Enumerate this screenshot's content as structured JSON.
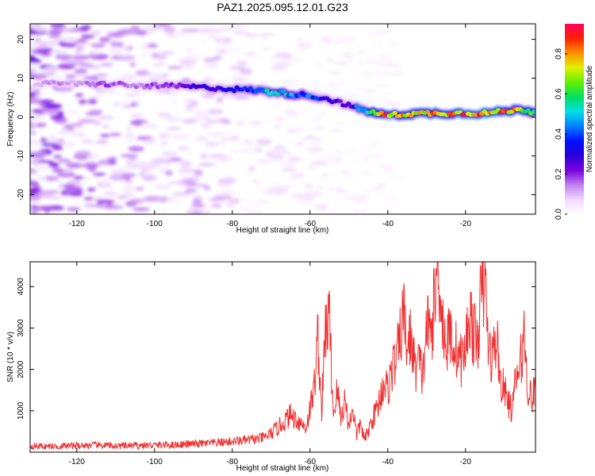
{
  "title": "PAZ1.2025.095.12.01.G23",
  "chart_data": [
    {
      "type": "heatmap",
      "panel": "spectrogram",
      "xlabel": "Height of straight line (km)",
      "ylabel": "Frequency (Hz)",
      "xlim": [
        -132,
        -2
      ],
      "ylim": [
        -25,
        24
      ],
      "x_ticks": [
        "-120",
        "-100",
        "-80",
        "-60",
        "-40",
        "-20"
      ],
      "y_ticks": [
        "20",
        "10",
        "0",
        "-10",
        "-20"
      ],
      "colorbar": {
        "label": "Normalized spectral amplitude",
        "range": [
          0,
          0.95
        ],
        "ticks": [
          "0.0",
          "0.2",
          "0.4",
          "0.6",
          "0.8"
        ],
        "colormap": [
          "#ffffff",
          "#f0d8ff",
          "#c080f0",
          "#7a00e0",
          "#2a00d8",
          "#0010ff",
          "#0080ff",
          "#00e0e8",
          "#00e060",
          "#60f000",
          "#e0f000",
          "#ff9000",
          "#ff2000",
          "#ff0060"
        ]
      },
      "ridge": {
        "x": [
          -132,
          -125,
          -120,
          -115,
          -110,
          -105,
          -100,
          -95,
          -90,
          -85,
          -80,
          -75,
          -70,
          -65,
          -60,
          -55,
          -50,
          -47,
          -45,
          -42,
          -40,
          -35,
          -30,
          -25,
          -20,
          -15,
          -10,
          -5,
          -2
        ],
        "freq": [
          8,
          9,
          8.5,
          8.5,
          8.5,
          8,
          8,
          8,
          7.8,
          7.5,
          7.2,
          7,
          6.5,
          6,
          5.5,
          4.5,
          3,
          2,
          1.5,
          0.8,
          0.5,
          0.8,
          1,
          1,
          1,
          1,
          1.5,
          2,
          1
        ],
        "amplitude": [
          0.1,
          0.15,
          0.12,
          0.2,
          0.18,
          0.15,
          0.2,
          0.22,
          0.28,
          0.3,
          0.32,
          0.38,
          0.55,
          0.5,
          0.42,
          0.3,
          0.25,
          0.5,
          0.65,
          0.8,
          0.9,
          0.75,
          0.85,
          0.8,
          0.88,
          0.9,
          0.85,
          0.75,
          0.6
        ]
      }
    },
    {
      "type": "line",
      "panel": "snr",
      "xlabel": "Height of straight line (km)",
      "ylabel": "SNR (10 * v/v)",
      "xlim": [
        -132,
        -2
      ],
      "ylim": [
        0,
        4600
      ],
      "x_ticks": [
        "-120",
        "-100",
        "-80",
        "-60",
        "-40",
        "-20"
      ],
      "y_ticks": [
        "1000",
        "2000",
        "3000",
        "4000"
      ],
      "color": "#f03030",
      "series": [
        {
          "x": [
            -132,
            -125,
            -120,
            -115,
            -110,
            -105,
            -100,
            -95,
            -90,
            -85,
            -80,
            -75,
            -72,
            -70,
            -67,
            -65,
            -63,
            -61,
            -59,
            -58,
            -57,
            -56,
            -55,
            -54,
            -53,
            -52,
            -51,
            -50,
            -49,
            -48,
            -47,
            -46,
            -45,
            -44,
            -43,
            -42,
            -41,
            -40,
            -39,
            -38,
            -37,
            -36,
            -35,
            -34,
            -33,
            -32,
            -31,
            -30,
            -29,
            -28,
            -27,
            -26,
            -25,
            -24,
            -23,
            -22,
            -21,
            -20,
            -19,
            -18,
            -17,
            -16,
            -15,
            -14,
            -13,
            -12,
            -11,
            -10,
            -9,
            -8,
            -7,
            -6,
            -5,
            -4,
            -3,
            -2
          ],
          "y": [
            150,
            140,
            160,
            170,
            150,
            160,
            170,
            180,
            200,
            220,
            260,
            300,
            350,
            450,
            700,
            900,
            750,
            600,
            1500,
            2800,
            1000,
            3000,
            3200,
            900,
            1500,
            800,
            1300,
            600,
            1100,
            400,
            700,
            300,
            500,
            800,
            1000,
            1300,
            1700,
            1500,
            2000,
            2200,
            2600,
            3400,
            2500,
            2800,
            2000,
            2200,
            1800,
            3100,
            2800,
            3600,
            4600,
            3300,
            2500,
            2900,
            2600,
            2400,
            2200,
            2500,
            3400,
            2900,
            2600,
            3800,
            4100,
            2400,
            2300,
            2800,
            1700,
            1500,
            1200,
            1000,
            1800,
            2000,
            2900,
            1600,
            1300,
            1500
          ]
        }
      ]
    }
  ]
}
